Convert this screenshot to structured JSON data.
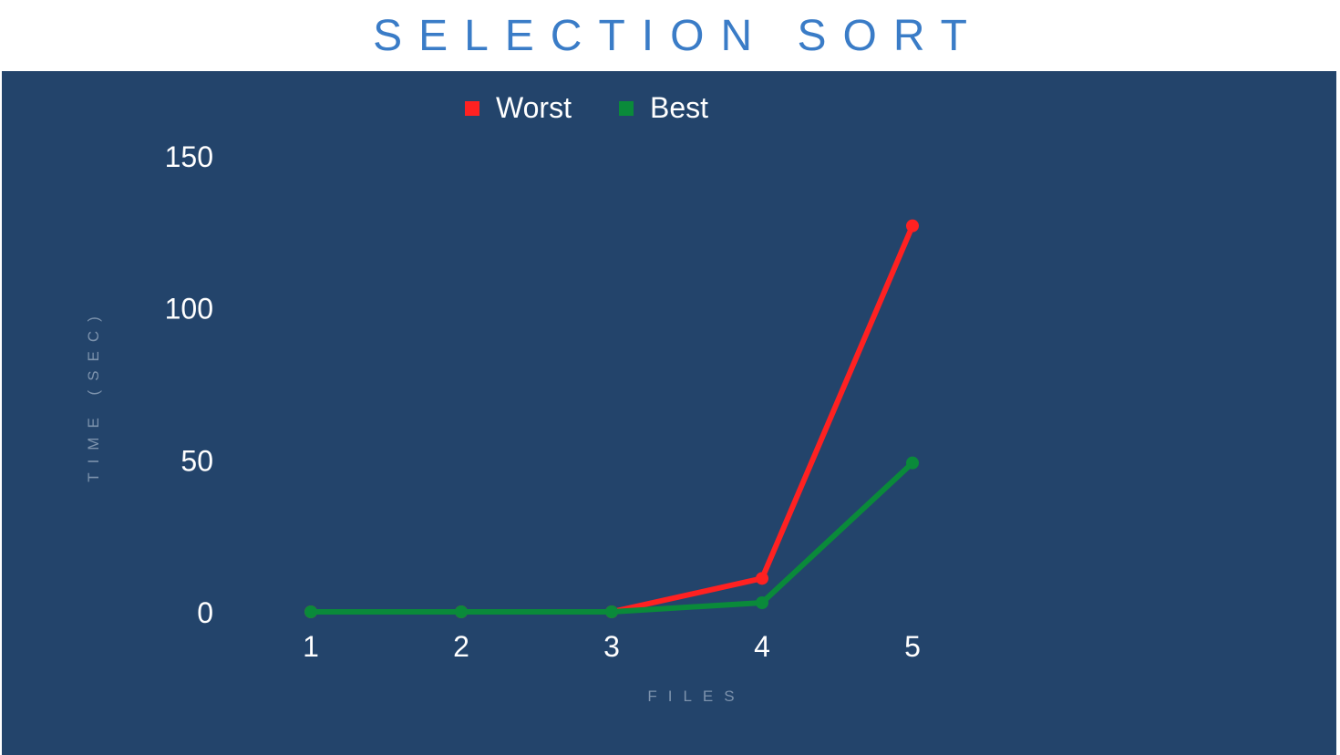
{
  "title": "SELECTION SORT",
  "colors": {
    "title": "#3a7cc7",
    "background": "#23446b",
    "worst": "#ff2121",
    "best": "#0a8a3a",
    "axis_label": "#7d93ad"
  },
  "chart_data": {
    "type": "line",
    "title": "SELECTION SORT",
    "xlabel": "FILES",
    "ylabel": "TIME (SEC)",
    "x": [
      1,
      2,
      3,
      4,
      5
    ],
    "xticks": [
      "1",
      "2",
      "3",
      "4",
      "5"
    ],
    "yticks": [
      "0",
      "50",
      "100",
      "150"
    ],
    "ylim": [
      0,
      150
    ],
    "grid": false,
    "legend_position": "top",
    "series": [
      {
        "name": "Worst",
        "color": "#ff2121",
        "values": [
          0,
          0,
          0,
          11,
          127
        ]
      },
      {
        "name": "Best",
        "color": "#0a8a3a",
        "values": [
          0,
          0,
          0,
          3,
          49
        ]
      }
    ]
  }
}
